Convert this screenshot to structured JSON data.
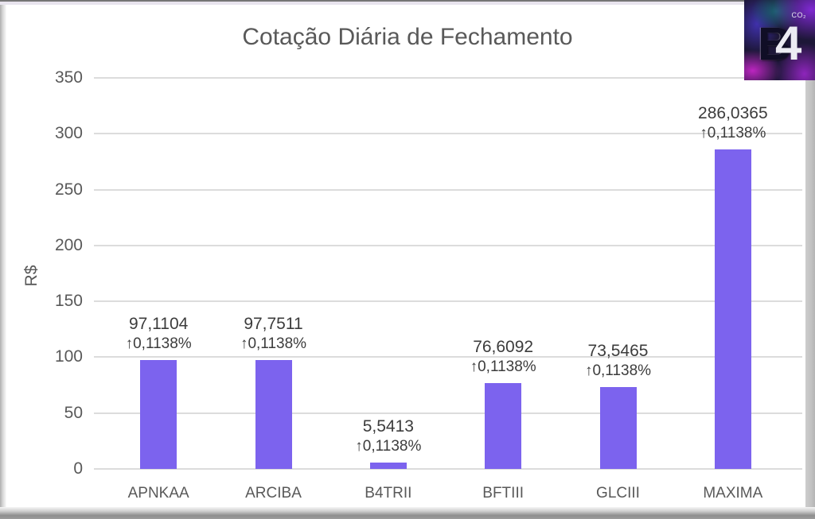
{
  "logo": {
    "letter_b": "B",
    "letter_4": "4",
    "sub": "CO₂"
  },
  "chart_data": {
    "type": "bar",
    "title": "Cotação Diária de Fechamento",
    "xlabel": "",
    "ylabel": "R$",
    "categories": [
      "APNKAA",
      "ARCIBA",
      "B4TRII",
      "BFTIII",
      "GLCIII",
      "MAXIMA"
    ],
    "values": [
      97.1104,
      97.7511,
      5.5413,
      76.6092,
      73.5465,
      286.0365
    ],
    "bar_labels": [
      {
        "value": "97,1104",
        "change": "↑0,1138%"
      },
      {
        "value": "97,7511",
        "change": "↑0,1138%"
      },
      {
        "value": "5,5413",
        "change": "↑0,1138%"
      },
      {
        "value": "76,6092",
        "change": "↑0,1138%"
      },
      {
        "value": "73,5465",
        "change": "↑0,1138%"
      },
      {
        "value": "286,0365",
        "change": "↑0,1138%"
      }
    ],
    "ylim": [
      0,
      350
    ],
    "yticks": [
      0,
      50,
      100,
      150,
      200,
      250,
      300,
      350
    ],
    "grid": true,
    "legend": "none",
    "bar_color": "#7c63ee",
    "axis_text_color": "#595959",
    "label_text_color": "#3c3c3c",
    "gridline_color": "#dcdcdc"
  }
}
